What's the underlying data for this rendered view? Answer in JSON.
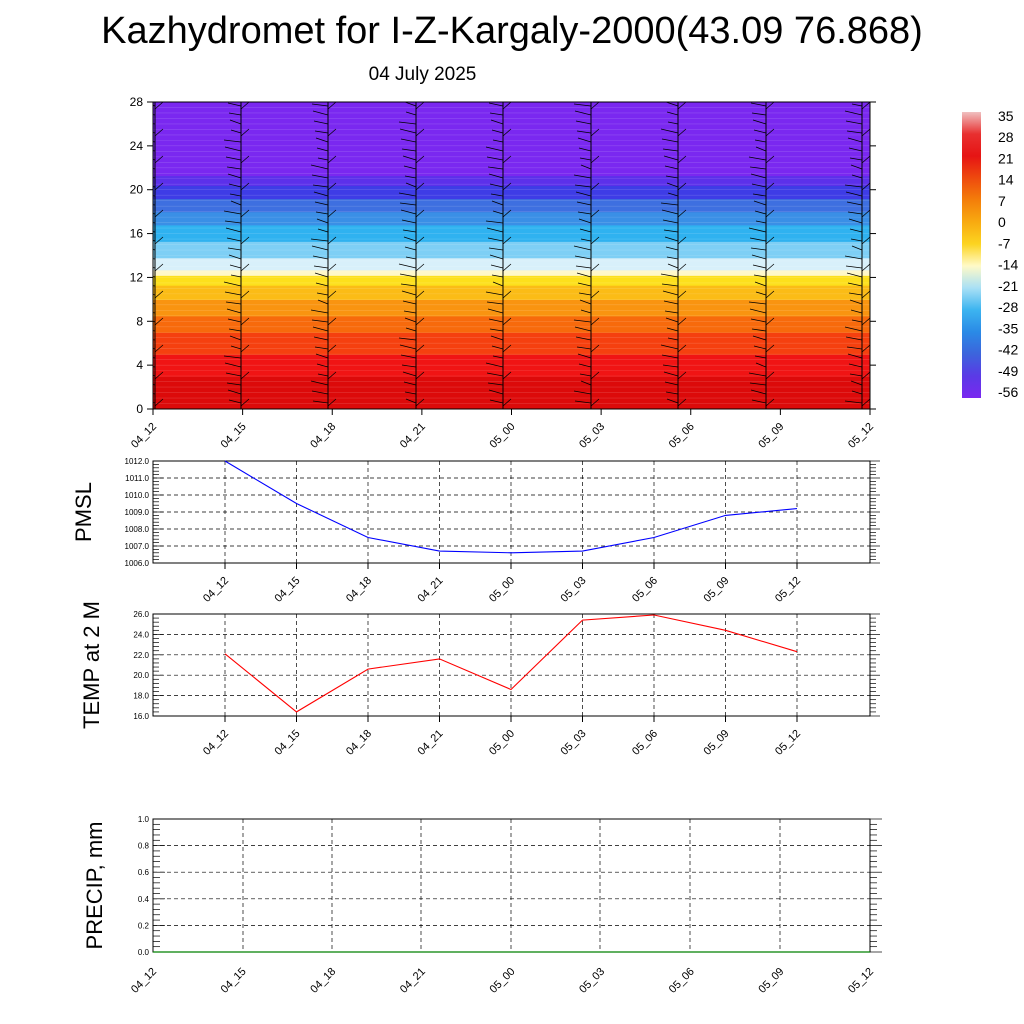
{
  "header": {
    "title": "Kazhydromet for I-Z-Kargaly-2000(43.09 76.868)",
    "subtitle": "04 July 2025"
  },
  "chart_data": [
    {
      "type": "heatmap",
      "name": "Cross-section",
      "x_ticks": [
        "04_12",
        "04_15",
        "04_18",
        "04_21",
        "05_00",
        "05_03",
        "05_06",
        "05_09",
        "05_12"
      ],
      "y_ticks": [
        "0",
        "4",
        "8",
        "12",
        "16",
        "20",
        "24",
        "28"
      ],
      "ylim": [
        0,
        28
      ],
      "colorbar": {
        "labels": [
          "35",
          "28",
          "21",
          "14",
          "7",
          "0",
          "-7",
          "-14",
          "-21",
          "-28",
          "-35",
          "-42",
          "-49",
          "-56"
        ],
        "colors": [
          "#f0c0c0",
          "#e83030",
          "#e61414",
          "#ee4a0e",
          "#f47e0a",
          "#f8aa10",
          "#fcd420",
          "#fffac8",
          "#a9e0f5",
          "#3cb4f0",
          "#2a8ae6",
          "#3c64dc",
          "#5a3ae6",
          "#7a28f0"
        ]
      },
      "layers": [
        {
          "y0": 0,
          "y1": 3,
          "color": "#dc0a0a"
        },
        {
          "y0": 3,
          "y1": 5,
          "color": "#f01414"
        },
        {
          "y0": 5,
          "y1": 7,
          "color": "#f5400f"
        },
        {
          "y0": 7,
          "y1": 8.5,
          "color": "#f76a0c"
        },
        {
          "y0": 8.5,
          "y1": 10,
          "color": "#f99410"
        },
        {
          "y0": 10,
          "y1": 11.3,
          "color": "#fbbc16"
        },
        {
          "y0": 11.3,
          "y1": 12.2,
          "color": "#fde01c"
        },
        {
          "y0": 12.2,
          "y1": 12.7,
          "color": "#fff8c8"
        },
        {
          "y0": 12.7,
          "y1": 13.8,
          "color": "#d8f0fa"
        },
        {
          "y0": 13.8,
          "y1": 15.3,
          "color": "#7ecff5"
        },
        {
          "y0": 15.3,
          "y1": 16.8,
          "color": "#2fb2f0"
        },
        {
          "y0": 16.8,
          "y1": 18,
          "color": "#3a8fe6"
        },
        {
          "y0": 18,
          "y1": 19.2,
          "color": "#3e6fe0"
        },
        {
          "y0": 19.2,
          "y1": 20.4,
          "color": "#3e3ce6"
        },
        {
          "y0": 20.4,
          "y1": 21.3,
          "color": "#5c30ea"
        },
        {
          "y0": 21.3,
          "y1": 28,
          "color": "#7a28f0"
        }
      ]
    },
    {
      "type": "line",
      "name": "PMSL",
      "ylabel": "PMSL",
      "categories": [
        "04_12",
        "04_15",
        "04_18",
        "04_21",
        "05_00",
        "05_03",
        "05_06",
        "05_09",
        "05_12"
      ],
      "values": [
        1012.0,
        1009.5,
        1007.5,
        1006.7,
        1006.6,
        1006.7,
        1007.5,
        1008.8,
        1009.2
      ],
      "y_ticks": [
        "1006.0",
        "1007.0",
        "1008.0",
        "1009.0",
        "1010.0",
        "1011.0",
        "1012.0"
      ],
      "ylim": [
        1006.0,
        1012.0
      ],
      "color": "#0000ff"
    },
    {
      "type": "line",
      "name": "TEMP",
      "ylabel": "TEMP at 2 M",
      "categories": [
        "04_12",
        "04_15",
        "04_18",
        "04_21",
        "05_00",
        "05_03",
        "05_06",
        "05_09",
        "05_12"
      ],
      "values": [
        22.1,
        16.4,
        20.6,
        21.6,
        18.6,
        25.4,
        25.9,
        24.4,
        22.3
      ],
      "y_ticks": [
        "16.0",
        "18.0",
        "20.0",
        "22.0",
        "24.0",
        "26.0"
      ],
      "ylim": [
        16.0,
        26.0
      ],
      "color": "#ff0000"
    },
    {
      "type": "line",
      "name": "PRECIP",
      "ylabel": "PRECIP, mm",
      "categories": [
        "04_12",
        "04_15",
        "04_18",
        "04_21",
        "05_00",
        "05_03",
        "05_06",
        "05_09",
        "05_12"
      ],
      "values": [
        0,
        0,
        0,
        0,
        0,
        0,
        0,
        0,
        0
      ],
      "y_ticks": [
        "0.0",
        "0.2",
        "0.4",
        "0.6",
        "0.8",
        "1.0"
      ],
      "ylim": [
        0.0,
        1.0
      ],
      "color": "#008000"
    }
  ]
}
